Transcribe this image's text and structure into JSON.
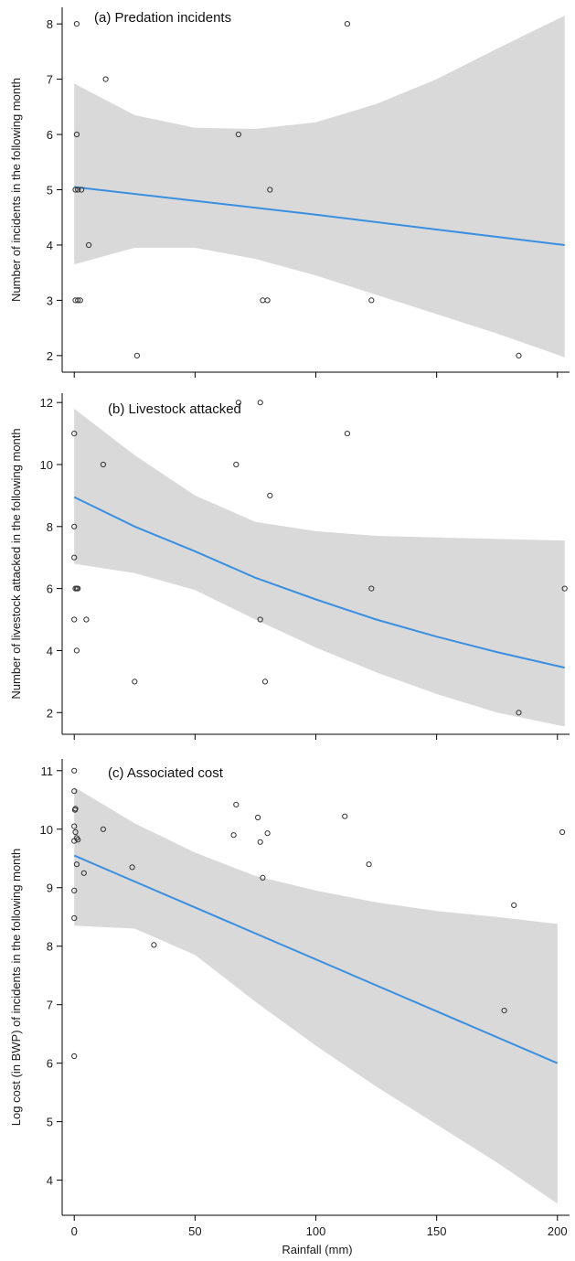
{
  "figure": {
    "xlabel": "Rainfall (mm)"
  },
  "colors": {
    "fit_line": "#3a8fe0",
    "band": "#d9d9d9",
    "point_stroke": "#333333",
    "axis": "#000000"
  },
  "chart_data": [
    {
      "type": "scatter",
      "title": "(a) Predation incidents",
      "xlabel": "",
      "ylabel": "Number of incidents in the following month",
      "xlim": [
        -5,
        205
      ],
      "ylim": [
        1.7,
        8.3
      ],
      "yticks": [
        2,
        3,
        4,
        5,
        6,
        7,
        8
      ],
      "xticks": [
        0,
        50,
        100,
        150,
        200
      ],
      "show_x_tick_labels": false,
      "grid": false,
      "points": [
        {
          "x": 1,
          "y": 8
        },
        {
          "x": 113,
          "y": 8
        },
        {
          "x": 13,
          "y": 7
        },
        {
          "x": 1,
          "y": 6
        },
        {
          "x": 68,
          "y": 6
        },
        {
          "x": 0.5,
          "y": 5
        },
        {
          "x": 1.5,
          "y": 5
        },
        {
          "x": 3,
          "y": 5
        },
        {
          "x": 81,
          "y": 5
        },
        {
          "x": 6,
          "y": 4
        },
        {
          "x": 0.5,
          "y": 3
        },
        {
          "x": 1.5,
          "y": 3
        },
        {
          "x": 2.5,
          "y": 3
        },
        {
          "x": 78,
          "y": 3
        },
        {
          "x": 80,
          "y": 3
        },
        {
          "x": 123,
          "y": 3
        },
        {
          "x": 26,
          "y": 2
        },
        {
          "x": 184,
          "y": 2
        }
      ],
      "fit": {
        "x": [
          0,
          50,
          100,
          150,
          203
        ],
        "y": [
          5.05,
          4.8,
          4.55,
          4.28,
          4.0
        ]
      },
      "band": {
        "x": [
          0,
          25,
          50,
          75,
          100,
          125,
          150,
          175,
          203
        ],
        "lower": [
          3.65,
          3.95,
          3.95,
          3.75,
          3.45,
          3.1,
          2.75,
          2.4,
          1.97
        ],
        "upper": [
          6.92,
          6.35,
          6.12,
          6.1,
          6.22,
          6.55,
          7.0,
          7.55,
          8.15
        ]
      }
    },
    {
      "type": "scatter",
      "title": "(b) Livestock attacked",
      "xlabel": "",
      "ylabel": "Number of livestock attacked in the following month",
      "xlim": [
        -5,
        205
      ],
      "ylim": [
        1.3,
        12.3
      ],
      "yticks": [
        2,
        4,
        6,
        8,
        10,
        12
      ],
      "xticks": [
        0,
        50,
        100,
        150,
        200
      ],
      "show_x_tick_labels": false,
      "grid": false,
      "points": [
        {
          "x": 68,
          "y": 12
        },
        {
          "x": 77,
          "y": 12
        },
        {
          "x": 0,
          "y": 11
        },
        {
          "x": 113,
          "y": 11
        },
        {
          "x": 12,
          "y": 10
        },
        {
          "x": 67,
          "y": 10
        },
        {
          "x": 81,
          "y": 9
        },
        {
          "x": 0,
          "y": 8
        },
        {
          "x": 0,
          "y": 7
        },
        {
          "x": 0.5,
          "y": 6
        },
        {
          "x": 1,
          "y": 6
        },
        {
          "x": 1.5,
          "y": 6
        },
        {
          "x": 123,
          "y": 6
        },
        {
          "x": 203,
          "y": 6
        },
        {
          "x": 0,
          "y": 5
        },
        {
          "x": 5,
          "y": 5
        },
        {
          "x": 77,
          "y": 5
        },
        {
          "x": 1,
          "y": 4
        },
        {
          "x": 25,
          "y": 3
        },
        {
          "x": 79,
          "y": 3
        },
        {
          "x": 184,
          "y": 2
        }
      ],
      "fit": {
        "x": [
          0,
          25,
          50,
          75,
          100,
          125,
          150,
          175,
          203
        ],
        "y": [
          8.95,
          8.0,
          7.2,
          6.35,
          5.65,
          5.0,
          4.45,
          3.95,
          3.45
        ]
      },
      "band": {
        "x": [
          0,
          25,
          50,
          75,
          100,
          125,
          150,
          175,
          203
        ],
        "lower": [
          6.8,
          6.5,
          5.95,
          5.0,
          4.1,
          3.3,
          2.6,
          2.0,
          1.55
        ],
        "upper": [
          11.8,
          10.3,
          9.0,
          8.15,
          7.85,
          7.7,
          7.65,
          7.6,
          7.55
        ]
      }
    },
    {
      "type": "scatter",
      "title": "(c) Associated cost",
      "xlabel": "Rainfall (mm)",
      "ylabel": "Log cost (in BWP) of incidents in the following month",
      "xlim": [
        -5,
        205
      ],
      "ylim": [
        3.4,
        11.2
      ],
      "yticks": [
        4,
        5,
        6,
        7,
        8,
        9,
        10,
        11
      ],
      "xticks": [
        0,
        50,
        100,
        150,
        200
      ],
      "show_x_tick_labels": true,
      "grid": false,
      "points": [
        {
          "x": 0,
          "y": 11.0
        },
        {
          "x": 0,
          "y": 10.65
        },
        {
          "x": 0.5,
          "y": 10.35
        },
        {
          "x": 0.3,
          "y": 10.33
        },
        {
          "x": 0,
          "y": 10.05
        },
        {
          "x": 0.5,
          "y": 9.95
        },
        {
          "x": 1,
          "y": 9.85
        },
        {
          "x": 0,
          "y": 9.8
        },
        {
          "x": 1.5,
          "y": 9.82
        },
        {
          "x": 1,
          "y": 9.4
        },
        {
          "x": 4,
          "y": 9.25
        },
        {
          "x": 0,
          "y": 8.95
        },
        {
          "x": 0,
          "y": 8.48
        },
        {
          "x": 0,
          "y": 6.12
        },
        {
          "x": 12,
          "y": 10.0
        },
        {
          "x": 24,
          "y": 9.35
        },
        {
          "x": 33,
          "y": 8.02
        },
        {
          "x": 67,
          "y": 10.42
        },
        {
          "x": 66,
          "y": 9.9
        },
        {
          "x": 76,
          "y": 10.2
        },
        {
          "x": 77,
          "y": 9.78
        },
        {
          "x": 80,
          "y": 9.93
        },
        {
          "x": 78,
          "y": 9.17
        },
        {
          "x": 112,
          "y": 10.22
        },
        {
          "x": 122,
          "y": 9.4
        },
        {
          "x": 178,
          "y": 6.9
        },
        {
          "x": 182,
          "y": 8.7
        },
        {
          "x": 202,
          "y": 9.95
        }
      ],
      "fit": {
        "x": [
          0,
          200
        ],
        "y": [
          9.55,
          6.0
        ]
      },
      "band": {
        "x": [
          0,
          25,
          50,
          75,
          100,
          125,
          150,
          175,
          200
        ],
        "lower": [
          8.35,
          8.3,
          7.85,
          7.05,
          6.3,
          5.6,
          4.95,
          4.3,
          3.6
        ],
        "upper": [
          10.72,
          10.1,
          9.6,
          9.2,
          8.95,
          8.75,
          8.6,
          8.5,
          8.38
        ]
      }
    }
  ]
}
